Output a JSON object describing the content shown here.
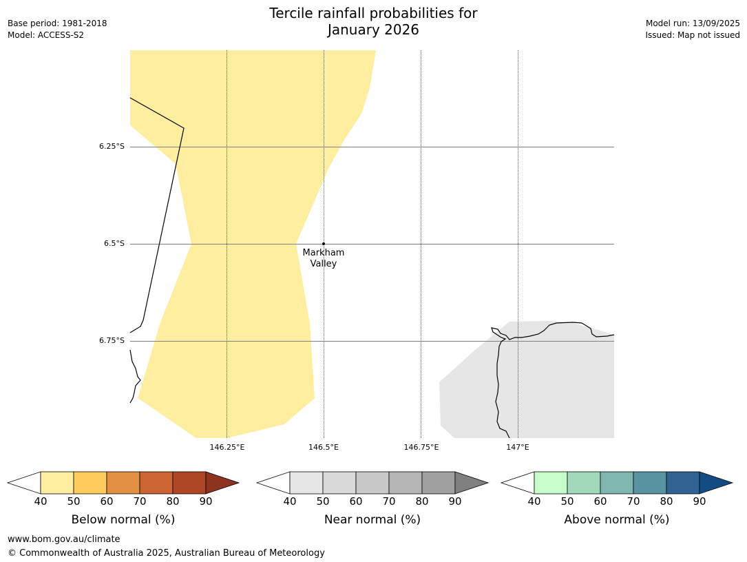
{
  "title_line1": "Tercile rainfall probabilities for",
  "title_line2": "January 2026",
  "meta_left": {
    "base_period": "Base period: 1981-2018",
    "model": "Model: ACCESS-S2"
  },
  "meta_right": {
    "model_run": "Model run: 13/09/2025",
    "issued": "Issued: Map not issued"
  },
  "map": {
    "lat_labels": [
      "6.25°S",
      "6.5°S",
      "6.75°S"
    ],
    "lon_labels": [
      "146.25°E",
      "146.5°E",
      "146.75°E",
      "147°E"
    ],
    "place": {
      "line1": "Markham",
      "line2": "Valley"
    },
    "colors": {
      "below_40_50": "#ffeda0",
      "near_40_50": "#e6e6e6",
      "water": "#ffffff"
    }
  },
  "colorbars": [
    {
      "title": "Below normal (%)",
      "ticks": [
        "40",
        "50",
        "60",
        "70",
        "80",
        "90"
      ],
      "colors": [
        "#ffeda0",
        "#fecc5c",
        "#e28f43",
        "#cc6433",
        "#ad4725",
        "#8d3320"
      ]
    },
    {
      "title": "Near normal (%)",
      "ticks": [
        "40",
        "50",
        "60",
        "70",
        "80",
        "90"
      ],
      "colors": [
        "#e6e6e6",
        "#d9d9d9",
        "#c8c8c8",
        "#b4b4b4",
        "#a0a0a0",
        "#808080"
      ]
    },
    {
      "title": "Above normal (%)",
      "ticks": [
        "40",
        "50",
        "60",
        "70",
        "80",
        "90"
      ],
      "colors": [
        "#c7fdcb",
        "#a3d9bb",
        "#80b6b0",
        "#5a93a0",
        "#306392",
        "#134c83"
      ]
    }
  ],
  "footer": {
    "url": "www.bom.gov.au/climate",
    "copyright": "© Commonwealth of Australia 2025, Australian Bureau of Meteorology"
  }
}
